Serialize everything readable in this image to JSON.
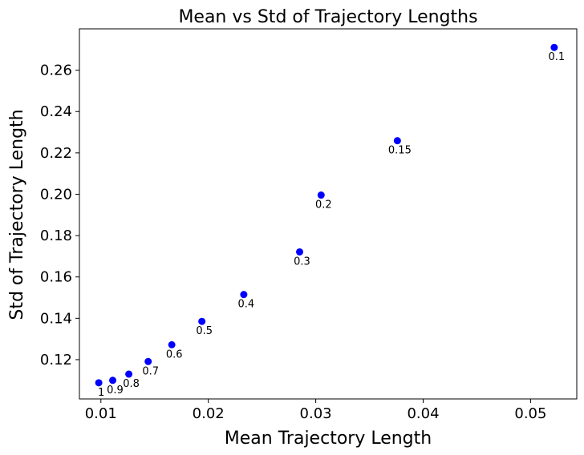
{
  "chart_data": {
    "type": "scatter",
    "title": "Mean vs Std of Trajectory Lengths",
    "xlabel": "Mean Trajectory Length",
    "ylabel": "Std of Trajectory Length",
    "xlim": [
      0.008,
      0.0543
    ],
    "ylim": [
      0.101,
      0.28
    ],
    "xticks": [
      0.01,
      0.02,
      0.03,
      0.04,
      0.05
    ],
    "xtick_labels": [
      "0.01",
      "0.02",
      "0.03",
      "0.04",
      "0.05"
    ],
    "yticks": [
      0.12,
      0.14,
      0.16,
      0.18,
      0.2,
      0.22,
      0.24,
      0.26
    ],
    "ytick_labels": [
      "0.12",
      "0.14",
      "0.16",
      "0.18",
      "0.20",
      "0.22",
      "0.24",
      "0.26"
    ],
    "grid": false,
    "marker_color": "#0000ff",
    "points": [
      {
        "x": 0.0522,
        "y": 0.271,
        "label": "0.1"
      },
      {
        "x": 0.0376,
        "y": 0.2259,
        "label": "0.15"
      },
      {
        "x": 0.0305,
        "y": 0.1996,
        "label": "0.2"
      },
      {
        "x": 0.0285,
        "y": 0.1721,
        "label": "0.3"
      },
      {
        "x": 0.0233,
        "y": 0.1515,
        "label": "0.4"
      },
      {
        "x": 0.0194,
        "y": 0.1385,
        "label": "0.5"
      },
      {
        "x": 0.0166,
        "y": 0.1272,
        "label": "0.6"
      },
      {
        "x": 0.0144,
        "y": 0.1191,
        "label": "0.7"
      },
      {
        "x": 0.0126,
        "y": 0.113,
        "label": "0.8"
      },
      {
        "x": 0.0111,
        "y": 0.11,
        "label": "0.9"
      },
      {
        "x": 0.0098,
        "y": 0.1088,
        "label": "1"
      }
    ]
  }
}
